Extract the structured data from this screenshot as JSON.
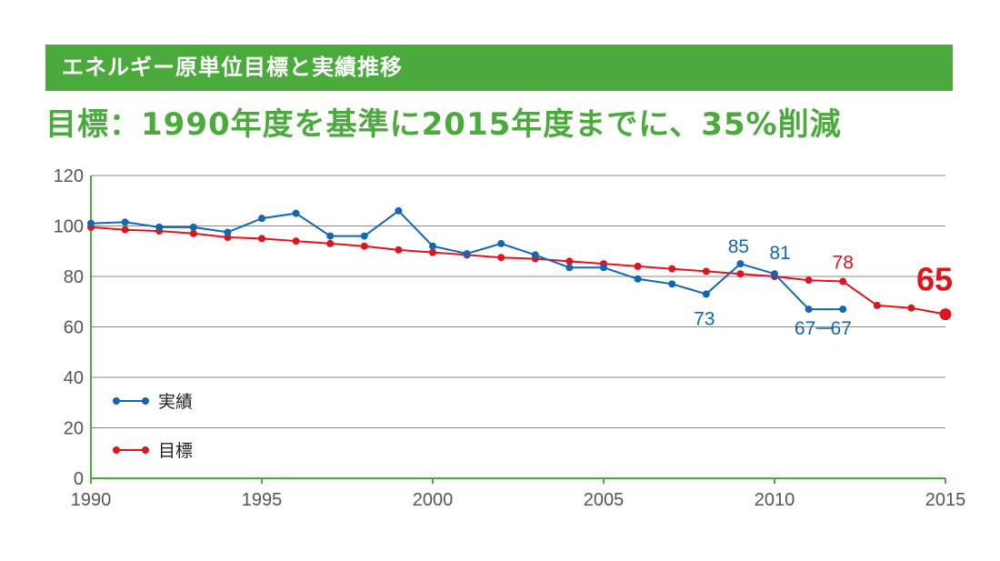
{
  "banner": {
    "title": "エネルギー原単位目標と実績推移"
  },
  "headline": "目標：1990年度を基準に2015年度までに、35%削減",
  "colors": {
    "banner": "#4aaa3c",
    "actual": "#1565b0",
    "target": "#e0141e",
    "axis": "#4aaa3c",
    "grid": "#8a8a8a"
  },
  "chart_data": {
    "type": "line",
    "x_ticks": [
      "1990",
      "1995",
      "2000",
      "2005",
      "2010",
      "2015"
    ],
    "y_ticks": [
      "0",
      "20",
      "40",
      "60",
      "80",
      "100",
      "120"
    ],
    "xlim": [
      1990,
      2015
    ],
    "ylim": [
      0,
      120
    ],
    "grid": true,
    "legend_position": "bottom-left",
    "series": [
      {
        "name": "実績",
        "color": "#1565b0",
        "x": [
          1990,
          1991,
          1992,
          1993,
          1994,
          1995,
          1996,
          1997,
          1998,
          1999,
          2000,
          2001,
          2002,
          2003,
          2004,
          2005,
          2006,
          2007,
          2008,
          2009,
          2010,
          2011,
          2012
        ],
        "y": [
          101,
          101.5,
          99.5,
          99.5,
          97.5,
          103,
          105,
          96,
          96,
          106,
          92,
          89,
          93,
          88.5,
          83.5,
          83.5,
          79,
          77,
          73,
          85,
          81,
          67,
          67
        ]
      },
      {
        "name": "目標",
        "color": "#e0141e",
        "x": [
          1990,
          1991,
          1992,
          1993,
          1994,
          1995,
          1996,
          1997,
          1998,
          1999,
          2000,
          2001,
          2002,
          2003,
          2004,
          2005,
          2006,
          2007,
          2008,
          2009,
          2010,
          2011,
          2012,
          2013,
          2014,
          2015
        ],
        "y": [
          99.5,
          98.5,
          98,
          97,
          95.5,
          95,
          94,
          93,
          92,
          90.5,
          89.5,
          88.5,
          87.5,
          87,
          86,
          85,
          84,
          83,
          82,
          81,
          80,
          78.5,
          78,
          68.5,
          67.5,
          65
        ]
      }
    ],
    "annotations": [
      {
        "text": "85",
        "series": "実績",
        "x": 2009,
        "y": 85
      },
      {
        "text": "81",
        "series": "実績",
        "x": 2010,
        "y": 81
      },
      {
        "text": "73",
        "series": "実績",
        "x": 2008,
        "y": 73
      },
      {
        "text": "67",
        "series": "実績",
        "x": 2011,
        "y": 67
      },
      {
        "text": "67",
        "series": "実績",
        "x": 2012,
        "y": 67
      },
      {
        "text": "78",
        "series": "目標",
        "x": 2012,
        "y": 78
      },
      {
        "text": "65",
        "series": "目標",
        "x": 2015,
        "y": 65
      }
    ]
  }
}
